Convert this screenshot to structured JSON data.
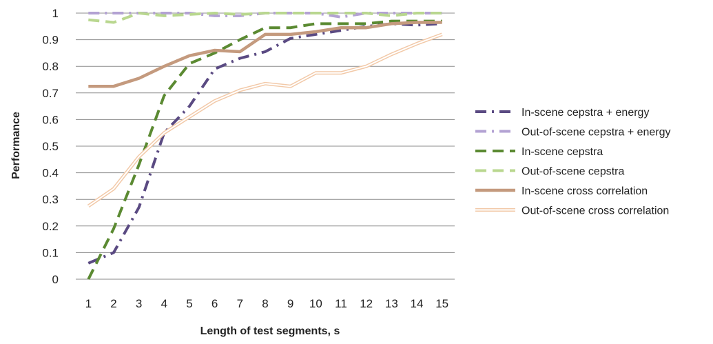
{
  "chart_data": {
    "type": "line",
    "title": "",
    "xlabel": "Length of test segments, s",
    "ylabel": "Performance",
    "categories": [
      "1",
      "2",
      "3",
      "4",
      "5",
      "6",
      "7",
      "8",
      "9",
      "10",
      "11",
      "12",
      "13",
      "14",
      "15"
    ],
    "y_ticks": [
      "0",
      "0.1",
      "0.2",
      "0.3",
      "0.4",
      "0.5",
      "0.6",
      "0.7",
      "0.8",
      "0.9",
      "1"
    ],
    "ylim": [
      0,
      1
    ],
    "grid": "horizontal",
    "legend_position": "right",
    "series": [
      {
        "name": "In-scene cepstra + energy",
        "color": "#5a4a82",
        "style": "dash-dot",
        "values": [
          0.06,
          0.1,
          0.27,
          0.55,
          0.65,
          0.79,
          0.83,
          0.855,
          0.905,
          0.92,
          0.935,
          0.95,
          0.96,
          0.955,
          0.96
        ]
      },
      {
        "name": "Out-of-scene cepstra + energy",
        "color": "#b3a2d3",
        "style": "dash-dot",
        "values": [
          1.0,
          1.0,
          1.0,
          1.0,
          1.0,
          0.99,
          0.99,
          1.0,
          1.0,
          1.0,
          0.985,
          1.0,
          1.0,
          1.0,
          1.0
        ]
      },
      {
        "name": "In-scene cepstra",
        "color": "#5b8a32",
        "style": "dashed",
        "values": [
          0.0,
          0.19,
          0.43,
          0.69,
          0.81,
          0.85,
          0.9,
          0.945,
          0.945,
          0.96,
          0.96,
          0.96,
          0.97,
          0.97,
          0.97
        ]
      },
      {
        "name": "Out-of-scene cepstra",
        "color": "#b9d78f",
        "style": "dashed",
        "values": [
          0.975,
          0.965,
          1.0,
          0.99,
          0.995,
          1.0,
          0.995,
          1.0,
          1.0,
          1.0,
          1.0,
          1.0,
          0.99,
          1.0,
          1.0
        ]
      },
      {
        "name": "In-scene cross correlation",
        "color": "#c49a7e",
        "style": "solid-thick",
        "values": [
          0.725,
          0.725,
          0.755,
          0.8,
          0.84,
          0.86,
          0.855,
          0.92,
          0.92,
          0.93,
          0.945,
          0.945,
          0.96,
          0.965,
          0.965
        ]
      },
      {
        "name": "Out-of-scene cross correlation",
        "color": "#f2c9a8",
        "style": "double",
        "values": [
          0.275,
          0.34,
          0.46,
          0.55,
          0.61,
          0.67,
          0.71,
          0.735,
          0.725,
          0.775,
          0.775,
          0.8,
          0.845,
          0.885,
          0.92
        ]
      }
    ]
  }
}
